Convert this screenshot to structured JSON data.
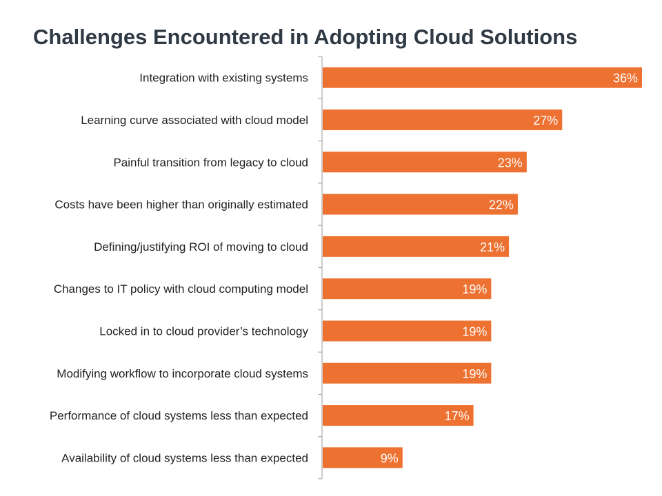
{
  "chart_data": {
    "type": "bar",
    "orientation": "horizontal",
    "title": "Challenges Encountered in Adopting Cloud Solutions",
    "categories": [
      "Integration with existing systems",
      "Learning curve associated with cloud model",
      "Painful transition from legacy to cloud",
      "Costs have been higher than originally estimated",
      "Defining/justifying ROI of moving to cloud",
      "Changes to IT policy with cloud computing model",
      "Locked in to cloud provider’s technology",
      "Modifying workflow to incorporate cloud systems",
      "Performance of cloud systems less than expected",
      "Availability of cloud systems less than expected"
    ],
    "values": [
      36,
      27,
      23,
      22,
      21,
      19,
      19,
      19,
      17,
      9
    ],
    "value_labels": [
      "36%",
      "27%",
      "23%",
      "22%",
      "21%",
      "19%",
      "19%",
      "19%",
      "17%",
      "9%"
    ],
    "xlim": [
      0,
      36
    ],
    "grid": false,
    "bar_color": "#ed7130",
    "title_color": "#2f3a45"
  }
}
